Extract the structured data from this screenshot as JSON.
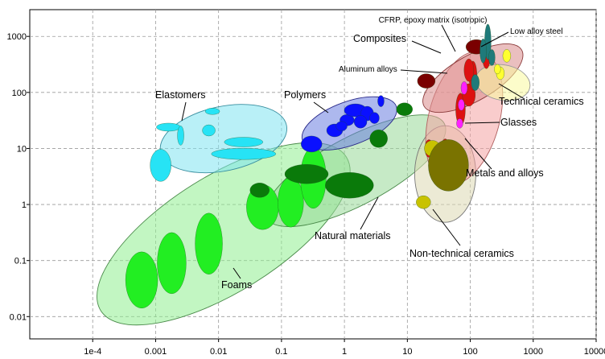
{
  "chart_data": {
    "type": "scatter",
    "title": "",
    "xlabel": "",
    "ylabel": "",
    "xscale": "log",
    "yscale": "log",
    "xlim": [
      1e-05,
      10000
    ],
    "ylim": [
      0.004,
      3000
    ],
    "grid": true,
    "x_tick_labels": [
      "1e-4",
      "0.001",
      "0.01",
      "0.1",
      "1",
      "10",
      "100",
      "1000",
      "10000"
    ],
    "y_tick_labels": [
      "0.01",
      "0.1",
      "1",
      "10",
      "100",
      "1000"
    ],
    "families": [
      {
        "name": "Foams",
        "color": "#90ee90",
        "x": [
          0.00015,
          0.25
        ],
        "y": [
          0.01,
          6
        ]
      },
      {
        "name": "Elastomers",
        "color": "#7fe3f0",
        "x": [
          0.0015,
          0.06
        ],
        "y": [
          2.5,
          100
        ]
      },
      {
        "name": "Polymers",
        "color": "#6a7de0",
        "x": [
          0.25,
          5
        ],
        "y": [
          6,
          90
        ]
      },
      {
        "name": "Natural materials",
        "color": "#98d898",
        "x": [
          0.05,
          20
        ],
        "y": [
          0.3,
          60
        ]
      },
      {
        "name": "Composites",
        "color": "#d98b8b",
        "x": [
          20,
          300
        ],
        "y": [
          20,
          700
        ]
      },
      {
        "name": "Technical ceramics",
        "color": "#fafa9e",
        "x": [
          100,
          700
        ],
        "y": [
          50,
          600
        ]
      },
      {
        "name": "Metals and alloys",
        "color": "#f4a3a3",
        "x": [
          18,
          220
        ],
        "y": [
          3,
          400
        ]
      },
      {
        "name": "Glasses",
        "color": "#f080f0",
        "x": [
          60,
          80
        ],
        "y": [
          15,
          50
        ]
      },
      {
        "name": "Non-technical ceramics",
        "color": "#dcd8b2",
        "x": [
          15,
          120
        ],
        "y": [
          0.5,
          25
        ]
      }
    ],
    "annotations": [
      "CFRP, epoxy matrix (isotropic)",
      "Low alloy steel",
      "Composites",
      "Aluminum alloys",
      "Technical ceramics",
      "Elastomers",
      "Polymers",
      "Glasses",
      "Metals and alloys",
      "Natural materials",
      "Non-technical ceramics",
      "Foams"
    ]
  }
}
